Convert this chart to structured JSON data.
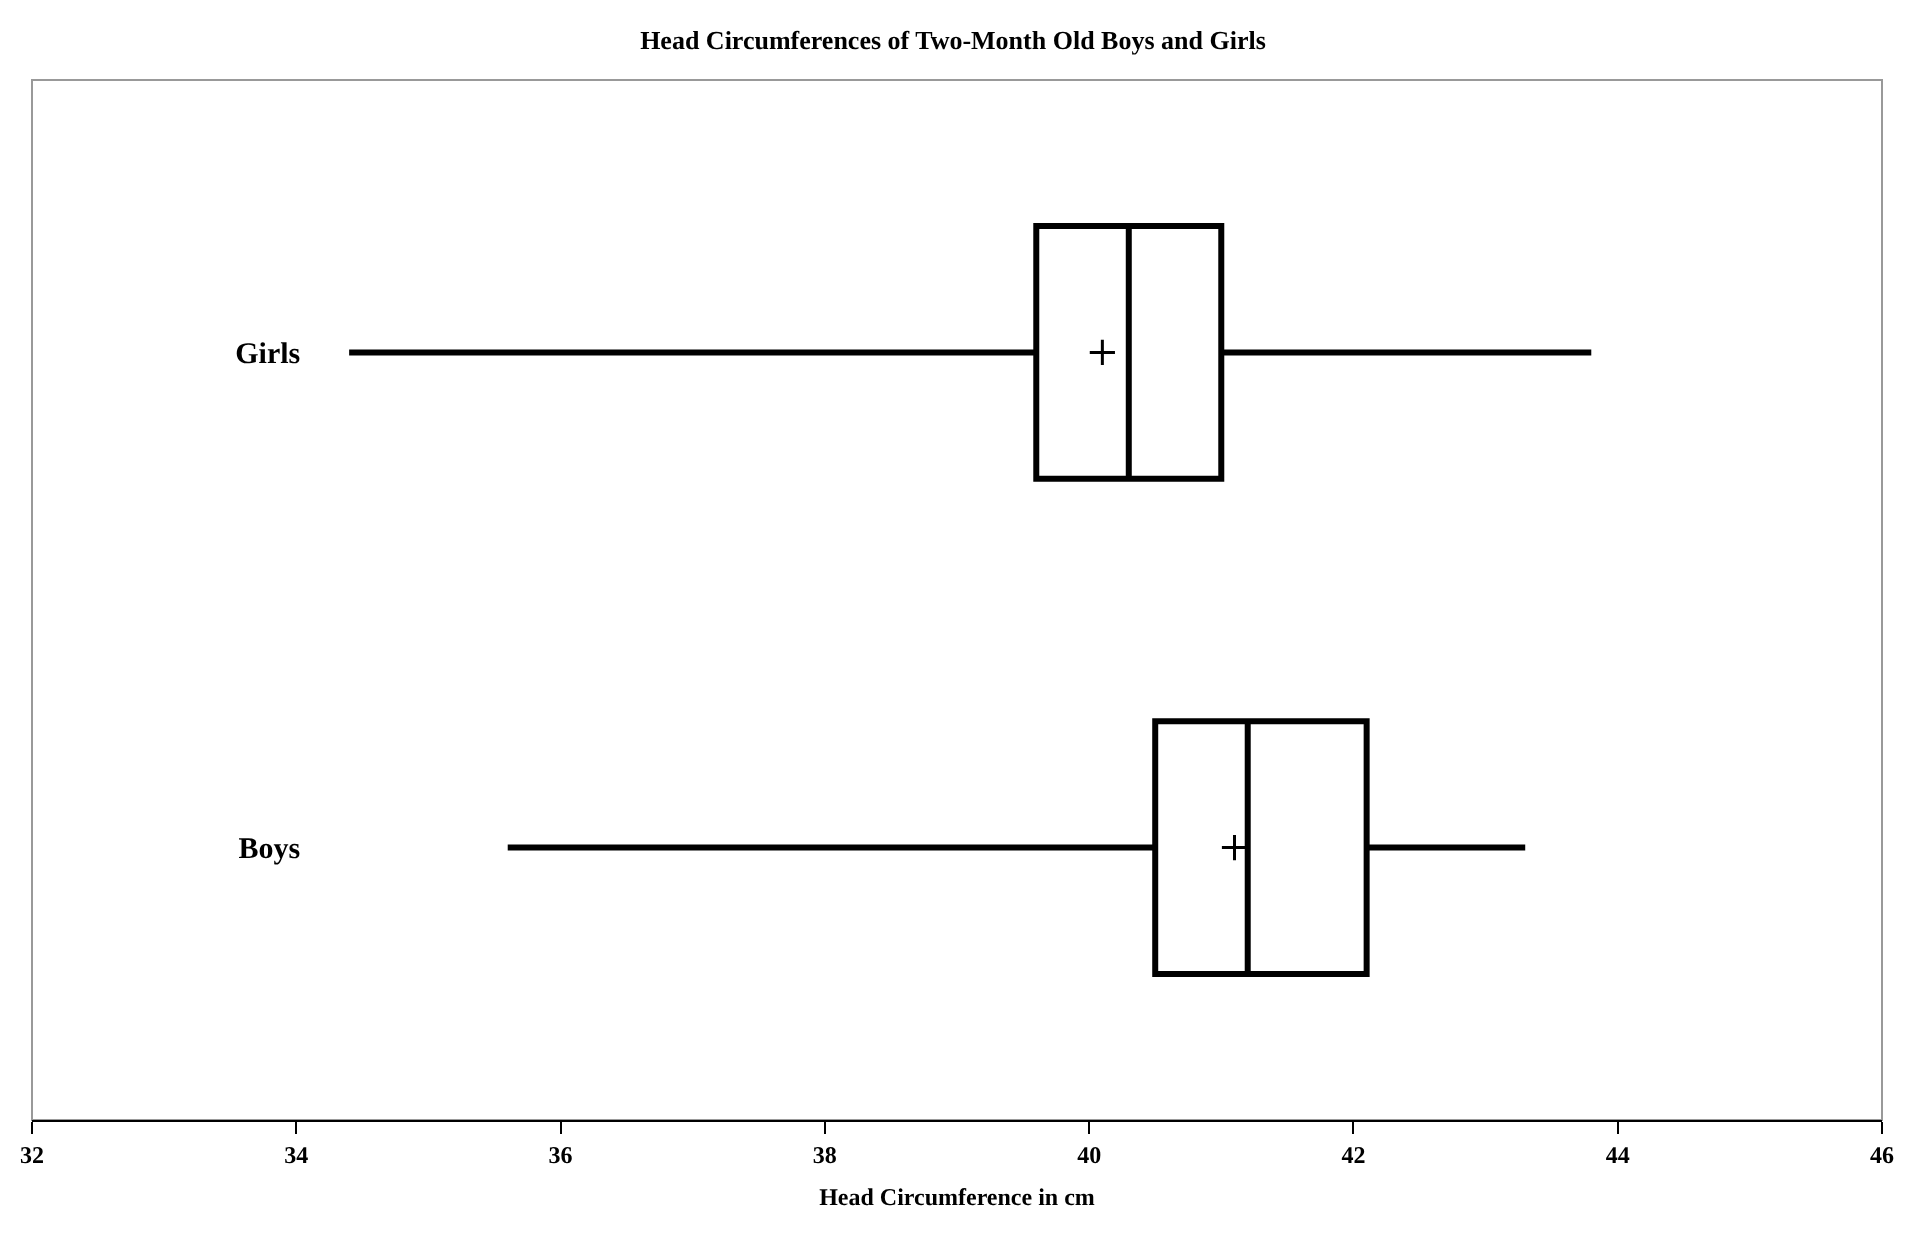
{
  "chart_data": {
    "type": "box",
    "title": "Head Circumferences of Two-Month Old Boys and Girls",
    "xlabel": "Head Circumference in cm",
    "orientation": "horizontal",
    "categories": [
      "Girls",
      "Boys"
    ],
    "boxes": [
      {
        "low": 34.4,
        "q1": 39.6,
        "median": 40.3,
        "q3": 41.0,
        "high": 43.8,
        "mean": 40.1
      },
      {
        "low": 35.6,
        "q1": 40.5,
        "median": 41.2,
        "q3": 42.1,
        "high": 43.3,
        "mean": 41.1
      }
    ],
    "color": "#000000",
    "xlim": [
      32,
      46
    ],
    "xticks": [
      32,
      34,
      36,
      38,
      40,
      42,
      44,
      46
    ],
    "grid": false
  }
}
